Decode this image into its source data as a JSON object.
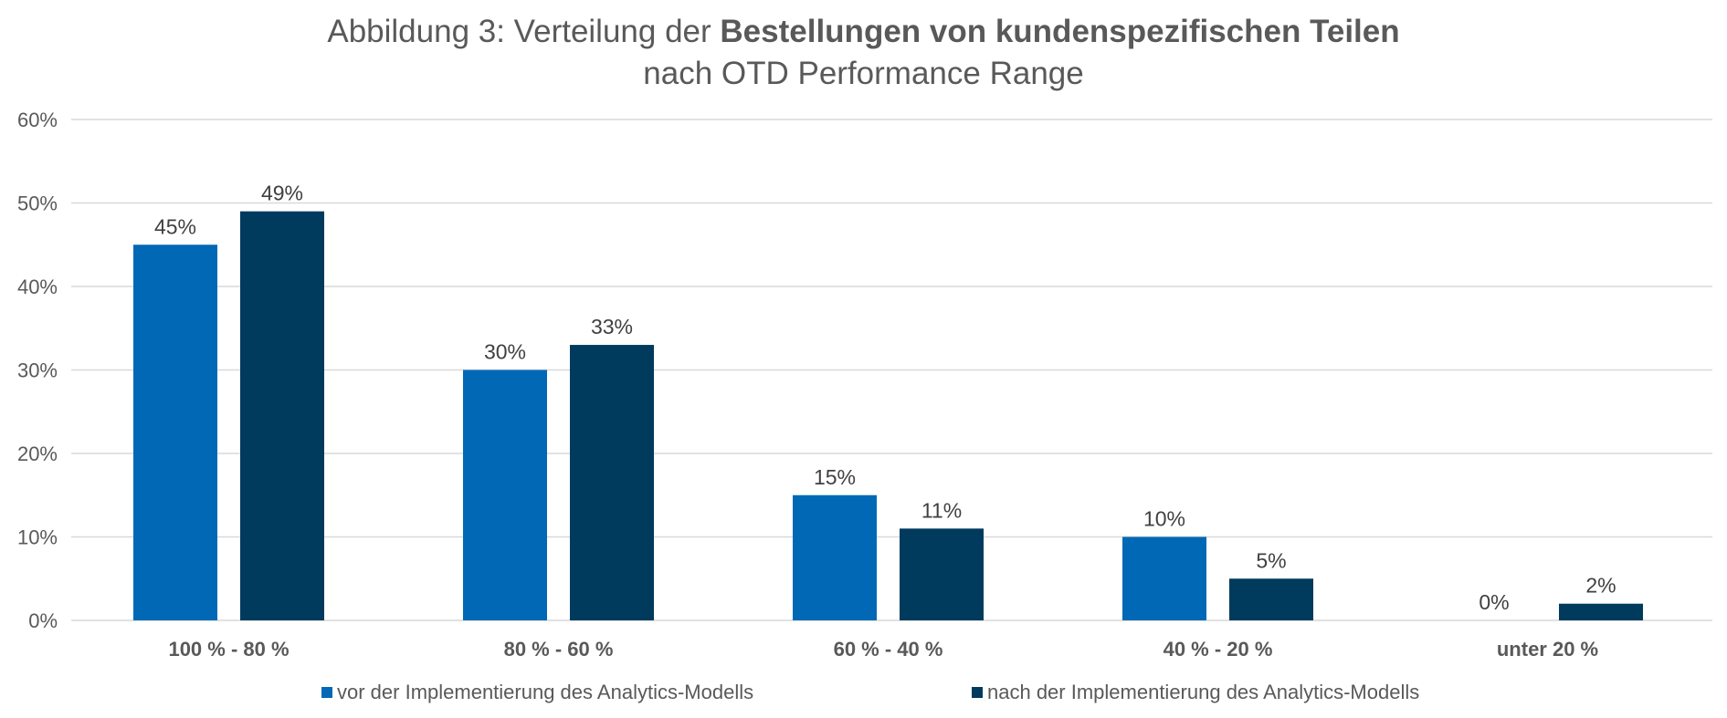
{
  "title": {
    "part1": "Abbildung 3: Verteilung der ",
    "bold": "Bestellungen von kundenspezifischen Teilen",
    "line2": "nach OTD Performance Range"
  },
  "colors": {
    "series1": "#0068b5",
    "series2": "#003a5d",
    "grid": "#d9d9d9"
  },
  "chart_data": {
    "type": "bar",
    "categories": [
      "100 % - 80 %",
      "80 % - 60 %",
      "60 % - 40 %",
      "40 % - 20 %",
      "unter 20 %"
    ],
    "series": [
      {
        "name": "vor der Implementierung des Analytics-Modells",
        "values": [
          45,
          30,
          15,
          10,
          0
        ]
      },
      {
        "name": "nach der Implementierung des Analytics-Modells",
        "values": [
          49,
          33,
          11,
          5,
          2
        ]
      }
    ],
    "data_labels": [
      [
        "45%",
        "30%",
        "15%",
        "10%",
        "0%"
      ],
      [
        "49%",
        "33%",
        "11%",
        "5%",
        "2%"
      ]
    ],
    "yticks": [
      0,
      10,
      20,
      30,
      40,
      50,
      60
    ],
    "ytick_labels": [
      "0%",
      "10%",
      "20%",
      "30%",
      "40%",
      "50%",
      "60%"
    ],
    "ylim": [
      0,
      60
    ],
    "grid": true,
    "legend_position": "bottom",
    "xlabel": "",
    "ylabel": ""
  }
}
